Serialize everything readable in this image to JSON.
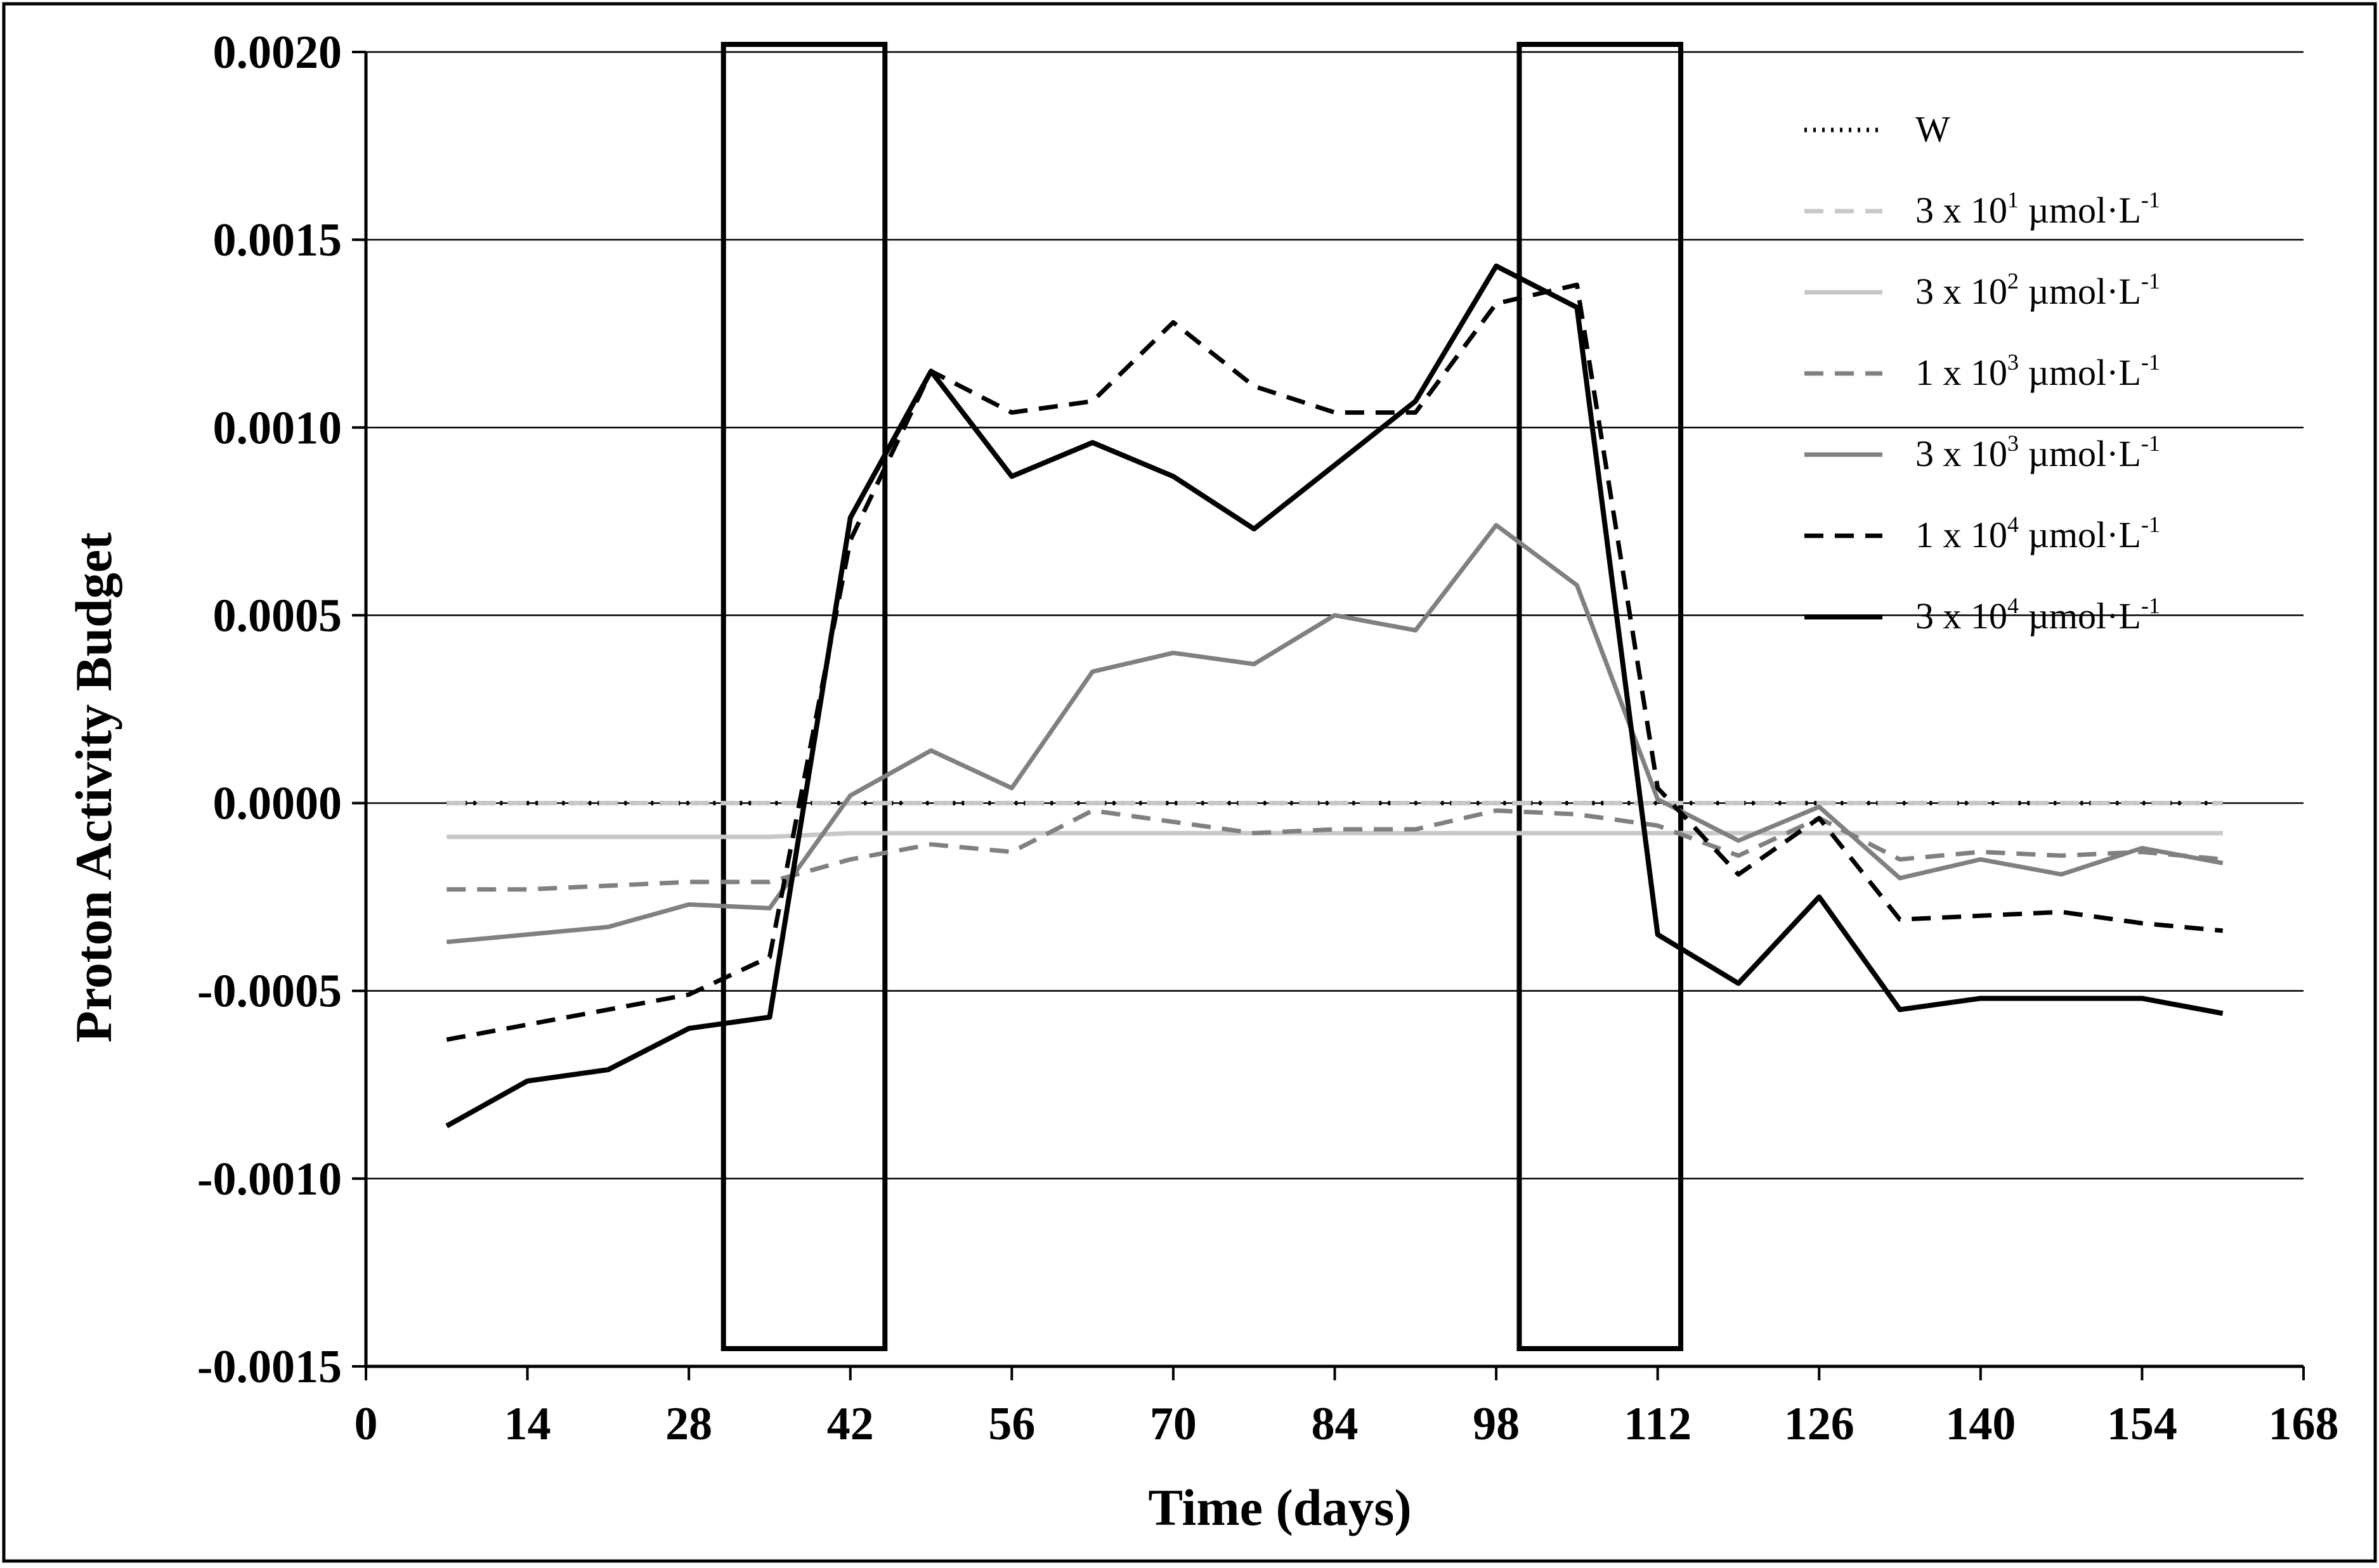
{
  "chart_data": {
    "type": "line",
    "title": "",
    "xlabel": "Time (days)",
    "ylabel": "Proton Activity Budget",
    "xlim": [
      0,
      168
    ],
    "ylim": [
      -0.0015,
      0.002
    ],
    "x_ticks": [
      0,
      14,
      28,
      42,
      56,
      70,
      84,
      98,
      112,
      126,
      140,
      154,
      168
    ],
    "x_tick_labels": [
      "0",
      "14",
      "28",
      "42",
      "56",
      "70",
      "84",
      "98",
      "112",
      "126",
      "140",
      "154",
      "168"
    ],
    "y_ticks": [
      -0.0015,
      -0.001,
      -0.0005,
      0.0,
      0.0005,
      0.001,
      0.0015,
      0.002
    ],
    "y_tick_labels": [
      "-0.0015",
      "-0.0010",
      "-0.0005",
      "0.0000",
      "0.0005",
      "0.0010",
      "0.0015",
      "0.0020"
    ],
    "grid": "horizontal",
    "legend_position": "top-right",
    "highlight_windows": [
      [
        31,
        45
      ],
      [
        100,
        114
      ]
    ],
    "x": [
      7,
      14,
      21,
      28,
      35,
      42,
      49,
      56,
      63,
      70,
      77,
      84,
      91,
      98,
      105,
      112,
      119,
      126,
      133,
      140,
      147,
      154,
      161
    ],
    "series": [
      {
        "name": "W",
        "legend_base": "W",
        "legend_exp": "",
        "legend_unit": "",
        "legend_unit_exp": "",
        "color": "#000000",
        "dash": "4,10",
        "width": 7,
        "values": [
          0,
          0,
          0,
          0,
          0,
          0,
          0,
          0,
          0,
          0,
          0,
          0,
          0,
          0,
          0,
          0,
          0,
          0,
          0,
          0,
          0,
          0,
          0
        ]
      },
      {
        "name": "3 x 10¹ µmol·L⁻¹",
        "legend_base": "3 x 10",
        "legend_exp": "1",
        "legend_unit": " µmol·L",
        "legend_unit_exp": "-1",
        "color": "#c8c8c8",
        "dash": "30,18",
        "width": 7,
        "values": [
          0.0,
          0.0,
          0.0,
          0.0,
          0.0,
          0.0,
          0.0,
          0.0,
          0.0,
          0.0,
          0.0,
          0.0,
          0.0,
          0.0,
          0.0,
          0.0,
          0.0,
          0.0,
          0.0,
          0.0,
          0.0,
          0.0,
          0.0
        ]
      },
      {
        "name": "3 x 10² µmol·L⁻¹",
        "legend_base": "3 x 10",
        "legend_exp": "2",
        "legend_unit": " µmol·L",
        "legend_unit_exp": "-1",
        "color": "#c8c8c8",
        "dash": "",
        "width": 7,
        "values": [
          -9e-05,
          -9e-05,
          -9e-05,
          -9e-05,
          -9e-05,
          -8e-05,
          -8e-05,
          -8e-05,
          -8e-05,
          -8e-05,
          -8e-05,
          -8e-05,
          -8e-05,
          -8e-05,
          -8e-05,
          -8e-05,
          -8e-05,
          -8e-05,
          -8e-05,
          -8e-05,
          -8e-05,
          -8e-05,
          -8e-05
        ]
      },
      {
        "name": "1 x 10³ µmol·L⁻¹",
        "legend_base": "1 x 10",
        "legend_exp": "3",
        "legend_unit": " µmol·L",
        "legend_unit_exp": "-1",
        "color": "#808080",
        "dash": "30,18",
        "width": 7,
        "values": [
          -0.00023,
          -0.00023,
          -0.00022,
          -0.00021,
          -0.00021,
          -0.00015,
          -0.00011,
          -0.00013,
          -2e-05,
          -5e-05,
          -8e-05,
          -7e-05,
          -7e-05,
          -2e-05,
          -3e-05,
          -6e-05,
          -0.00014,
          -4e-05,
          -0.00015,
          -0.00013,
          -0.00014,
          -0.00013,
          -0.00015
        ]
      },
      {
        "name": "3 x 10³ µmol·L⁻¹",
        "legend_base": "3 x 10",
        "legend_exp": "3",
        "legend_unit": " µmol·L",
        "legend_unit_exp": "-1",
        "color": "#808080",
        "dash": "",
        "width": 7,
        "values": [
          -0.00037,
          -0.00035,
          -0.00033,
          -0.00027,
          -0.00028,
          2e-05,
          0.00014,
          4e-05,
          0.00035,
          0.0004,
          0.00037,
          0.0005,
          0.00046,
          0.00074,
          0.00058,
          1e-05,
          -0.0001,
          -1e-05,
          -0.0002,
          -0.00015,
          -0.00019,
          -0.00012,
          -0.00016
        ]
      },
      {
        "name": "1 x 10⁴ µmol·L⁻¹",
        "legend_base": "1 x 10",
        "legend_exp": "4",
        "legend_unit": " µmol·L",
        "legend_unit_exp": "-1",
        "color": "#000000",
        "dash": "30,18",
        "width": 7,
        "values": [
          -0.00063,
          -0.00059,
          -0.00055,
          -0.00051,
          -0.00041,
          0.0007,
          0.00115,
          0.00104,
          0.00107,
          0.00128,
          0.00111,
          0.00104,
          0.00104,
          0.00133,
          0.00138,
          4e-05,
          -0.00019,
          -4e-05,
          -0.00031,
          -0.0003,
          -0.00029,
          -0.00032,
          -0.00034
        ]
      },
      {
        "name": "3 x 10⁴ µmol·L⁻¹",
        "legend_base": "3 x 10",
        "legend_exp": "4",
        "legend_unit": " µmol·L",
        "legend_unit_exp": "-1",
        "color": "#000000",
        "dash": "",
        "width": 8,
        "values": [
          -0.00086,
          -0.00074,
          -0.00071,
          -0.0006,
          -0.00057,
          0.00076,
          0.00115,
          0.00087,
          0.00096,
          0.00087,
          0.00073,
          0.0009,
          0.00107,
          0.00143,
          0.00132,
          -0.00035,
          -0.00048,
          -0.00025,
          -0.00055,
          -0.00052,
          -0.00052,
          -0.00052,
          -0.00056
        ]
      }
    ]
  }
}
